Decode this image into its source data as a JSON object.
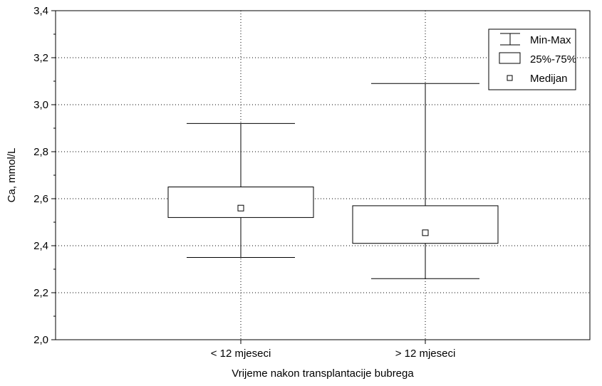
{
  "chart_data": {
    "type": "box",
    "categories": [
      "< 12 mjeseci",
      "> 12 mjeseci"
    ],
    "boxes": [
      {
        "category": "< 12 mjeseci",
        "min": 2.35,
        "q1": 2.52,
        "median": 2.56,
        "q3": 2.65,
        "max": 2.92
      },
      {
        "category": "> 12 mjeseci",
        "min": 2.26,
        "q1": 2.41,
        "median": 2.455,
        "q3": 2.57,
        "max": 3.09
      }
    ],
    "title": "",
    "xlabel": "Vrijeme nakon transplantacije bubrega",
    "ylabel": "Ca,  mmol/L",
    "ylim": [
      2.0,
      3.4
    ],
    "yticks": [
      "2,0",
      "2,2",
      "2,4",
      "2,6",
      "2,8",
      "3,0",
      "3,2",
      "3,4"
    ],
    "grid": true,
    "legend": {
      "position": "top-right",
      "entries": [
        {
          "symbol": "whisker",
          "label": "Min-Max"
        },
        {
          "symbol": "box",
          "label": "25%-75%"
        },
        {
          "symbol": "square",
          "label": "Medijan"
        }
      ]
    },
    "colors": {
      "line": "#000000",
      "background": "#ffffff",
      "grid": "#000000"
    }
  }
}
